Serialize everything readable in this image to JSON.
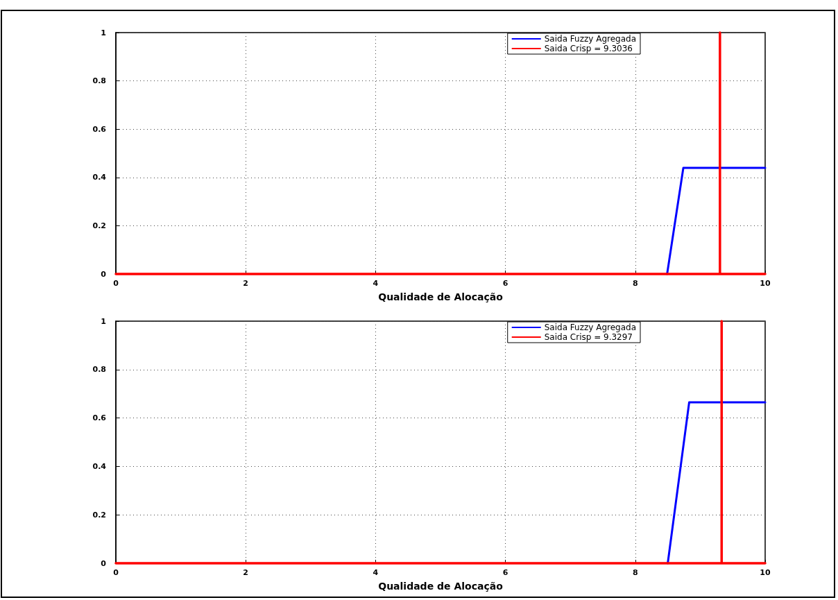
{
  "chart_data": [
    {
      "type": "line",
      "xlabel": "Qualidade de Alocação",
      "xlim": [
        0,
        10
      ],
      "xticks": [
        0,
        2,
        4,
        6,
        8,
        10
      ],
      "ylim": [
        0,
        1
      ],
      "yticks": [
        0,
        0.2,
        0.4,
        0.6,
        0.8,
        1
      ],
      "grid": true,
      "legend": "top right",
      "marker": "none",
      "line_style": "solid",
      "series": [
        {
          "name": "Saida Fuzzy Agregada",
          "color": "#0000ff",
          "x": [
            8.49,
            8.74,
            10
          ],
          "values": [
            0,
            0.44,
            0.44
          ]
        },
        {
          "name": "Saida Crisp = 9.3036",
          "color": "#ff0000",
          "x": [
            0,
            9.3036,
            9.3036,
            9.3036,
            10
          ],
          "values": [
            0,
            0,
            1,
            0,
            0
          ]
        }
      ]
    },
    {
      "type": "line",
      "xlabel": "Qualidade de Alocação",
      "xlim": [
        0,
        10
      ],
      "xticks": [
        0,
        2,
        4,
        6,
        8,
        10
      ],
      "ylim": [
        0,
        1
      ],
      "yticks": [
        0,
        0.2,
        0.4,
        0.6,
        0.8,
        1
      ],
      "grid": true,
      "legend": "top right",
      "marker": "none",
      "line_style": "solid",
      "series": [
        {
          "name": "Saida Fuzzy Agregada",
          "color": "#0000ff",
          "x": [
            8.5,
            8.83,
            10
          ],
          "values": [
            0,
            0.665,
            0.665
          ]
        },
        {
          "name": "Saida Crisp = 9.3297",
          "color": "#ff0000",
          "x": [
            0,
            9.3297,
            9.3297,
            9.3297,
            10
          ],
          "values": [
            0,
            0,
            1,
            0,
            0
          ]
        }
      ]
    }
  ]
}
